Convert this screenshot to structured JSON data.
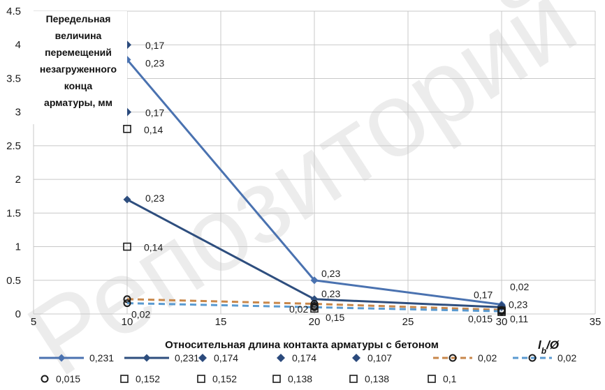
{
  "chart_data": {
    "type": "line",
    "title": "",
    "ylabel_lines": [
      "Передельная",
      "величина",
      "перемещений",
      "незагруженного",
      "конца",
      "арматуры, мм"
    ],
    "xlabel": "Относительная длина контакта арматуры с бетоном",
    "xunit_main": "l",
    "xunit_sub": "b",
    "xunit_rest": "/Ø",
    "xlim": [
      5,
      35
    ],
    "ylim": [
      0,
      4.5
    ],
    "xticks": [
      5,
      10,
      15,
      20,
      25,
      30,
      35
    ],
    "yticks": [
      0,
      0.5,
      1,
      1.5,
      2,
      2.5,
      3,
      3.5,
      4,
      4.5
    ],
    "xtick_labels": [
      "5",
      "10",
      "15",
      "20",
      "25",
      "30",
      "35"
    ],
    "ytick_labels": [
      "0",
      "0.5",
      "1",
      "1.5",
      "2",
      "2.5",
      "3",
      "3.5",
      "4",
      "4.5"
    ],
    "grid": true,
    "legend_position": "bottom",
    "watermark": "Репозиторий",
    "colors": {
      "dark_blue": "#2e4e7e",
      "mid_blue": "#4a72b0",
      "diamond": "#2b4a7c",
      "orange": "#c8874a",
      "light_blue": "#5a9ad0",
      "marker_open": "#1a1a1a",
      "grid": "#c8c8c8"
    },
    "series": [
      {
        "name": "0,231",
        "style": "line-diamond",
        "color": "#4a72b0",
        "width": 3,
        "dash": false,
        "points": [
          {
            "x": 10,
            "y": 3.78
          },
          {
            "x": 20,
            "y": 0.5
          },
          {
            "x": 30,
            "y": 0.14
          }
        ]
      },
      {
        "name": "0,231",
        "style": "line-diamond",
        "color": "#2e4e7e",
        "width": 3,
        "dash": false,
        "points": [
          {
            "x": 10,
            "y": 1.7
          },
          {
            "x": 20,
            "y": 0.22
          },
          {
            "x": 30,
            "y": 0.1
          }
        ]
      },
      {
        "name": "0,174",
        "style": "diamond",
        "color": "#2b4a7c",
        "points": [
          {
            "x": 10,
            "y": 4.0
          }
        ]
      },
      {
        "name": "0,174",
        "style": "diamond",
        "color": "#2b4a7c",
        "points": [
          {
            "x": 10,
            "y": 3.0
          }
        ]
      },
      {
        "name": "0,107",
        "style": "diamond",
        "color": "#2b4a7c",
        "points": [
          {
            "x": 30,
            "y": 0.12
          }
        ]
      },
      {
        "name": "0,02",
        "style": "dash-circle",
        "color": "#c8874a",
        "width": 3,
        "dash": true,
        "points": [
          {
            "x": 10,
            "y": 0.22
          },
          {
            "x": 20,
            "y": 0.15
          },
          {
            "x": 30,
            "y": 0.06
          }
        ]
      },
      {
        "name": "0,02",
        "style": "dash-circle",
        "color": "#5a9ad0",
        "width": 3,
        "dash": true,
        "points": [
          {
            "x": 10,
            "y": 0.16
          },
          {
            "x": 20,
            "y": 0.1
          },
          {
            "x": 30,
            "y": 0.04
          }
        ]
      },
      {
        "name": "0,015",
        "style": "circle",
        "color": "#1a1a1a",
        "points": [
          {
            "x": 20,
            "y": 0.12
          }
        ]
      },
      {
        "name": "0,152",
        "style": "square",
        "color": "#1a1a1a",
        "points": [
          {
            "x": 10,
            "y": 2.75
          }
        ]
      },
      {
        "name": "0,152",
        "style": "square",
        "color": "#1a1a1a",
        "points": [
          {
            "x": 10,
            "y": 1.0
          }
        ]
      },
      {
        "name": "0,138",
        "style": "square",
        "color": "#1a1a1a",
        "points": [
          {
            "x": 20,
            "y": 0.08
          }
        ]
      },
      {
        "name": "0,138",
        "style": "square",
        "color": "#1a1a1a",
        "points": [
          {
            "x": 30,
            "y": 0.05
          }
        ]
      },
      {
        "name": "0,1",
        "style": "square",
        "color": "#1a1a1a",
        "points": [
          {
            "x": 30,
            "y": 0.03
          }
        ]
      }
    ],
    "annotations": [
      {
        "text": "0,17",
        "x": 10,
        "y": 4.0
      },
      {
        "text": "0,23",
        "x": 10,
        "y": 3.78
      },
      {
        "text": "0,17",
        "x": 10,
        "y": 3.0
      },
      {
        "text": "0,14",
        "x": 10,
        "y": 2.75
      },
      {
        "text": "0,23",
        "x": 10,
        "y": 1.7
      },
      {
        "text": "0,14",
        "x": 10,
        "y": 1.0
      },
      {
        "text": "0,02",
        "x": 10,
        "y": 0.1
      },
      {
        "text": "0,23",
        "x": 20,
        "y": 0.5
      },
      {
        "text": "0,23",
        "x": 20,
        "y": 0.22
      },
      {
        "text": "0,02",
        "x": 20,
        "y": 0.04
      },
      {
        "text": "0,15",
        "x": 20,
        "y": 0.0
      },
      {
        "text": "0,17",
        "x": 30,
        "y": 0.2
      },
      {
        "text": "0,02",
        "x": 30,
        "y": 0.25
      },
      {
        "text": "0,23",
        "x": 30,
        "y": 0.12
      },
      {
        "text": "0,015",
        "x": 30,
        "y": -0.02
      },
      {
        "text": "0,11",
        "x": 30,
        "y": -0.02
      }
    ]
  }
}
